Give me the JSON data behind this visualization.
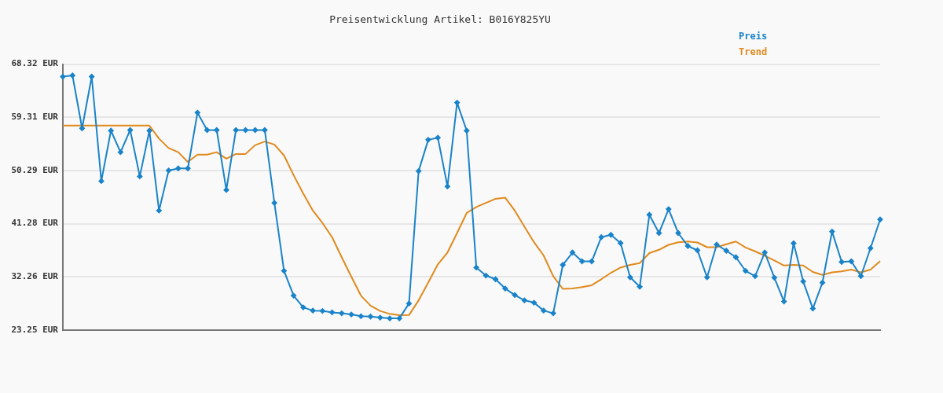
{
  "chart_data": {
    "type": "line",
    "title": "Preisentwicklung Artikel: B016Y825YU",
    "categories": [
      null,
      null,
      null,
      null,
      null,
      null,
      null,
      null,
      null,
      null,
      null,
      null,
      null,
      null,
      null,
      null,
      null,
      null,
      null,
      null,
      null,
      null,
      null,
      null,
      null,
      null,
      null,
      null,
      null,
      null,
      null,
      null,
      null,
      null,
      null,
      null,
      null,
      null,
      null,
      null,
      null,
      null,
      null,
      null,
      null,
      null,
      null,
      null,
      null,
      null,
      null,
      null,
      null,
      null,
      null,
      null,
      null,
      null,
      null,
      null,
      null,
      null,
      null,
      null,
      null,
      null,
      null,
      null,
      null,
      null,
      null,
      null,
      null,
      null,
      null,
      null,
      null,
      null,
      null,
      null,
      null,
      null,
      null,
      null,
      null,
      null
    ],
    "series": [
      {
        "name": "Preis",
        "color": "#1a83c9",
        "marker": "diamond",
        "values": [
          66.2,
          66.4,
          57.45,
          66.2,
          48.5,
          57.05,
          53.4,
          57.15,
          49.3,
          57.05,
          43.5,
          50.3,
          50.65,
          50.65,
          60.1,
          57.15,
          57.15,
          47.0,
          57.15,
          57.15,
          57.15,
          57.15,
          44.8,
          33.3,
          29.1,
          27.1,
          26.56,
          26.5,
          26.26,
          26.1,
          25.9,
          25.6,
          25.55,
          25.37,
          25.24,
          25.24,
          27.76,
          50.2,
          55.5,
          55.86,
          47.6,
          61.8,
          57.05,
          33.85,
          32.5,
          31.87,
          30.3,
          29.2,
          28.3,
          27.9,
          26.56,
          26.1,
          34.3,
          36.4,
          34.9,
          34.9,
          39.0,
          39.4,
          38.0,
          32.2,
          30.6,
          42.8,
          39.7,
          43.75,
          39.7,
          37.5,
          36.77,
          32.2,
          37.74,
          36.7,
          35.6,
          33.3,
          32.4,
          36.4,
          32.13,
          28.1,
          37.97,
          31.5,
          26.9,
          31.3,
          39.95,
          34.8,
          34.9,
          32.4,
          37.13,
          42.0
        ]
      },
      {
        "name": "Trend",
        "color": "#e08a1e",
        "marker": "none",
        "values": [
          57.9,
          57.9,
          57.9,
          57.9,
          57.9,
          57.9,
          57.9,
          57.9,
          57.9,
          57.9,
          55.7,
          54.1,
          53.4,
          51.75,
          52.98,
          52.98,
          53.4,
          52.3,
          53.1,
          53.1,
          54.6,
          55.2,
          54.7,
          52.85,
          49.5,
          46.4,
          43.5,
          41.4,
          39.0,
          35.6,
          32.3,
          29.1,
          27.4,
          26.5,
          26.0,
          25.77,
          25.8,
          28.3,
          31.3,
          34.4,
          36.4,
          39.7,
          43.1,
          44.1,
          44.8,
          45.5,
          45.7,
          43.5,
          40.8,
          38.14,
          35.9,
          32.4,
          30.24,
          30.3,
          30.55,
          30.85,
          31.87,
          32.97,
          33.85,
          34.3,
          34.6,
          36.3,
          36.86,
          37.7,
          38.14,
          38.27,
          38.1,
          37.3,
          37.3,
          37.8,
          38.27,
          37.26,
          36.6,
          35.85,
          35.05,
          34.2,
          34.3,
          34.2,
          33.1,
          32.6,
          33.05,
          33.2,
          33.5,
          33.05,
          33.5,
          34.95
        ]
      }
    ],
    "ylim": [
      23.25,
      68.32
    ],
    "yticks": [
      {
        "value": 23.25,
        "label": "23.25 EUR"
      },
      {
        "value": 32.26,
        "label": "32.26 EUR"
      },
      {
        "value": 41.28,
        "label": "41.28 EUR"
      },
      {
        "value": 50.29,
        "label": "50.29 EUR"
      },
      {
        "value": 59.31,
        "label": "59.31 EUR"
      },
      {
        "value": 68.32,
        "label": "68.32 EUR"
      }
    ],
    "grid": "y",
    "legend": "top right",
    "tick_labels": "y",
    "line_style": "solid"
  }
}
